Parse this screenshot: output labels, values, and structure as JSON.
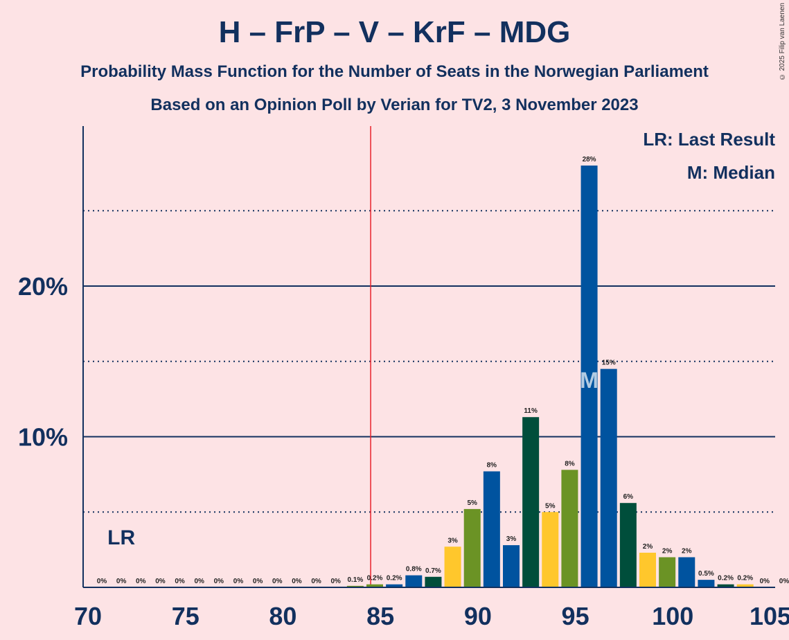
{
  "chart_data": {
    "type": "bar",
    "title": "H – FrP – V – KrF – MDG",
    "subtitle1": "Probability Mass Function for the Number of Seats in the Norwegian Parliament",
    "subtitle2": "Based on an Opinion Poll by Verian for TV2, 3 November 2023",
    "copyright": "© 2025 Filip van Laenen",
    "xlabel": "",
    "ylabel": "",
    "x": [
      70,
      71,
      72,
      73,
      74,
      75,
      76,
      77,
      78,
      79,
      80,
      81,
      82,
      83,
      84,
      85,
      86,
      87,
      88,
      89,
      90,
      91,
      92,
      93,
      94,
      95,
      96,
      97,
      98,
      99,
      100,
      101,
      102,
      103,
      104,
      105
    ],
    "values": [
      0,
      0,
      0,
      0,
      0,
      0,
      0,
      0,
      0,
      0,
      0,
      0,
      0,
      0.1,
      0.2,
      0.2,
      0.8,
      0.7,
      2.7,
      5.2,
      7.7,
      2.8,
      11.3,
      5.0,
      7.8,
      28.0,
      14.5,
      5.6,
      2.3,
      2.0,
      2.0,
      0.5,
      0.2,
      0.2,
      0,
      0
    ],
    "labels": [
      "0%",
      "0%",
      "0%",
      "0%",
      "0%",
      "0%",
      "0%",
      "0%",
      "0%",
      "0%",
      "0%",
      "0%",
      "0%",
      "0.1%",
      "0.2%",
      "0.2%",
      "0.8%",
      "0.7%",
      "3%",
      "5%",
      "8%",
      "3%",
      "11%",
      "5%",
      "8%",
      "28%",
      "15%",
      "6%",
      "2%",
      "2%",
      "2%",
      "0.5%",
      "0.2%",
      "0.2%",
      "0%",
      "0%"
    ],
    "bar_colors": [
      "#00539f",
      "#00539f",
      "#00539f",
      "#00539f",
      "#00539f",
      "#00539f",
      "#00539f",
      "#00539f",
      "#00539f",
      "#00539f",
      "#00539f",
      "#00539f",
      "#00539f",
      "#6b9325",
      "#6b9325",
      "#00539f",
      "#00539f",
      "#004e3b",
      "#ffc72c",
      "#6b9325",
      "#00539f",
      "#00539f",
      "#004e3b",
      "#ffc72c",
      "#6b9325",
      "#00539f",
      "#00539f",
      "#004e3b",
      "#ffc72c",
      "#6b9325",
      "#00539f",
      "#00539f",
      "#004e3b",
      "#ffc72c",
      "#6b9325",
      "#00539f"
    ],
    "x_ticks": [
      70,
      75,
      80,
      85,
      90,
      95,
      100,
      105
    ],
    "x_tick_labels": [
      "70",
      "75",
      "80",
      "85",
      "90",
      "95",
      "100",
      "105"
    ],
    "y_ticks_solid": [
      10,
      20
    ],
    "y_tick_labels": [
      "10%",
      "20%"
    ],
    "y_ticks_dotted": [
      5,
      15,
      25
    ],
    "xlim": [
      70,
      105
    ],
    "ylim": [
      0,
      30.6
    ],
    "majority_line": 84.5,
    "last_result": 71,
    "last_result_label": "LR",
    "median": 95,
    "median_label": "M",
    "legend_lr": "LR: Last Result",
    "legend_m": "M: Median",
    "colors": {
      "axis": "#12305e",
      "majority": "#e8222a",
      "background": "#fde3e5"
    }
  }
}
